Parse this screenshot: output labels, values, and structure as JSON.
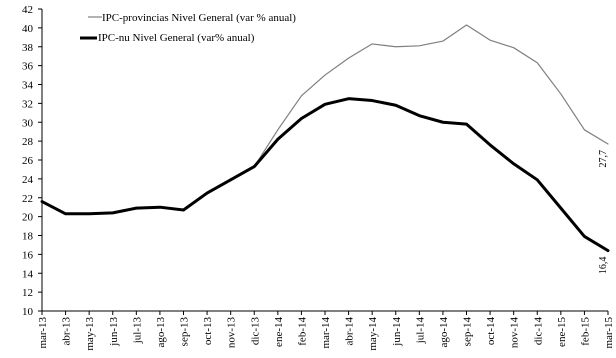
{
  "chart_data": {
    "type": "line",
    "title": "",
    "xlabel": "",
    "ylabel": "",
    "ylim": [
      10,
      42
    ],
    "y_ticks": [
      10,
      12,
      14,
      16,
      18,
      20,
      22,
      24,
      26,
      28,
      30,
      32,
      34,
      36,
      38,
      40,
      42
    ],
    "grid": false,
    "legend_position": "top-left",
    "categories": [
      "mar-13",
      "abr-13",
      "may-13",
      "jun-13",
      "jul-13",
      "ago-13",
      "sep-13",
      "oct-13",
      "nov-13",
      "dic-13",
      "ene-14",
      "feb-14",
      "mar-14",
      "abr-14",
      "may-14",
      "jun-14",
      "jul-14",
      "ago-14",
      "sep-14",
      "oct-14",
      "nov-14",
      "dic-14",
      "ene-15",
      "feb-15",
      "mar-15"
    ],
    "series": [
      {
        "name": "IPC-provincias Nivel General (var % anual)",
        "color": "#7f7f7f",
        "values": [
          null,
          null,
          null,
          null,
          null,
          null,
          null,
          null,
          null,
          25.3,
          29.2,
          32.8,
          35.0,
          36.8,
          38.3,
          38.0,
          38.1,
          38.6,
          40.3,
          38.7,
          37.9,
          36.3,
          33.0,
          29.2,
          27.7
        ]
      },
      {
        "name": "IPC-nu Nivel General (var% anual)",
        "color": "#000000",
        "values": [
          21.6,
          20.3,
          20.3,
          20.4,
          20.9,
          21.0,
          20.7,
          22.5,
          23.9,
          25.3,
          28.2,
          30.4,
          31.9,
          32.5,
          32.3,
          31.8,
          30.7,
          30.0,
          29.8,
          27.6,
          25.6,
          23.9,
          20.9,
          17.9,
          16.4
        ]
      }
    ],
    "data_labels": [
      {
        "series": 0,
        "category": "mar-15",
        "text": "27,7"
      },
      {
        "series": 1,
        "category": "mar-15",
        "text": "16,4"
      }
    ]
  }
}
